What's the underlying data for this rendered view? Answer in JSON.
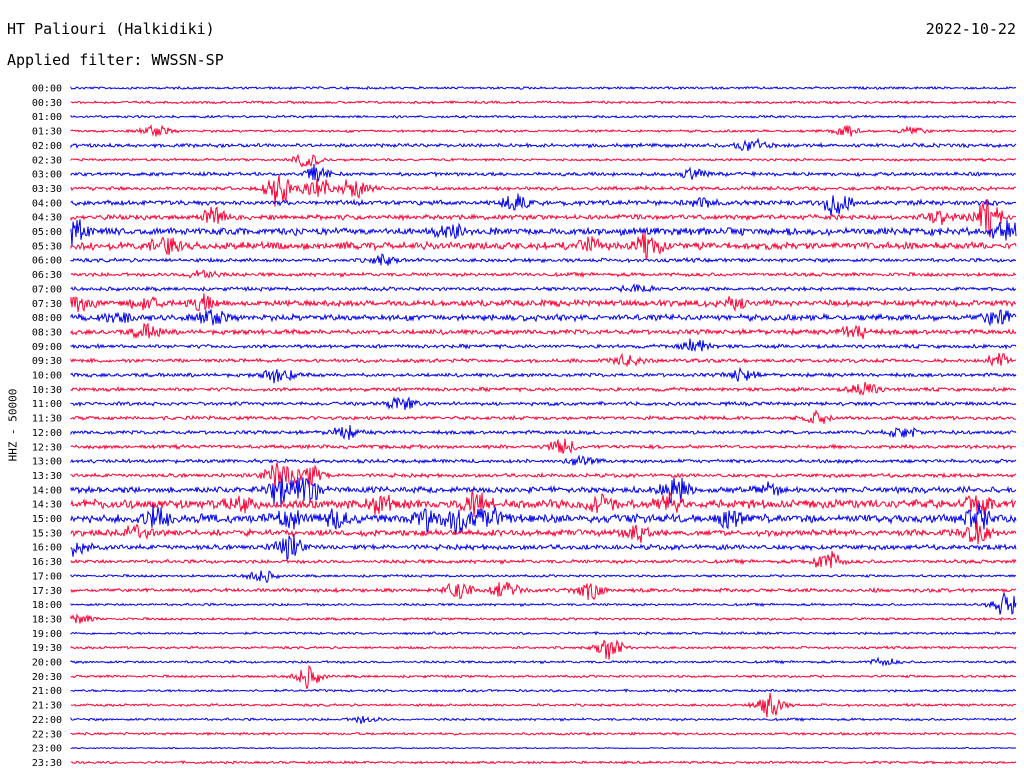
{
  "header": {
    "station": "HT Paliouri (Halkidiki)",
    "date": "2022-10-22",
    "filter": "Applied filter: WWSSN-SP"
  },
  "colors": {
    "even_trace": "#0000ee",
    "odd_trace": "#ff0033",
    "text": "#000000"
  },
  "chart_data": {
    "type": "line",
    "title": "HT Paliouri (Halkidiki)",
    "subtitle": "Applied filter: WWSSN-SP",
    "ylabel": "HHZ - 50000",
    "xlabel": "",
    "grid": false,
    "legend": "none",
    "rows": [
      "00:00",
      "00:30",
      "01:00",
      "01:30",
      "02:00",
      "02:30",
      "03:00",
      "03:30",
      "04:00",
      "04:30",
      "05:00",
      "05:30",
      "06:00",
      "06:30",
      "07:00",
      "07:30",
      "08:00",
      "08:30",
      "09:00",
      "09:30",
      "10:00",
      "10:30",
      "11:00",
      "11:30",
      "12:00",
      "12:30",
      "13:00",
      "13:30",
      "14:00",
      "14:30",
      "15:00",
      "15:30",
      "16:00",
      "16:30",
      "17:00",
      "17:30",
      "18:00",
      "18:30",
      "19:00",
      "19:30",
      "20:00",
      "20:30",
      "21:00",
      "21:30",
      "22:00",
      "22:30",
      "23:00",
      "23:30"
    ],
    "noise_level": [
      1,
      1,
      1,
      1,
      1.5,
      1,
      1.5,
      1.5,
      2,
      2,
      3,
      3,
      1.5,
      1.5,
      1.5,
      2.5,
      2.5,
      2,
      1.5,
      1.5,
      1.5,
      1.5,
      1.5,
      1.5,
      1.5,
      1.5,
      1.5,
      1.5,
      2.5,
      3.5,
      3.5,
      2.5,
      2,
      1.5,
      1,
      1.5,
      1,
      1,
      1,
      1,
      1,
      1,
      1,
      1,
      1,
      1,
      0.5,
      1
    ],
    "events": [
      {
        "row": 3,
        "x": 0.09,
        "a": 5
      },
      {
        "row": 3,
        "x": 0.82,
        "a": 5
      },
      {
        "row": 3,
        "x": 0.89,
        "a": 4
      },
      {
        "row": 4,
        "x": 0.72,
        "a": 7
      },
      {
        "row": 5,
        "x": 0.25,
        "a": 7
      },
      {
        "row": 6,
        "x": 0.26,
        "a": 10
      },
      {
        "row": 6,
        "x": 0.66,
        "a": 6
      },
      {
        "row": 7,
        "x": 0.22,
        "a": 16
      },
      {
        "row": 7,
        "x": 0.26,
        "a": 12
      },
      {
        "row": 7,
        "x": 0.3,
        "a": 10
      },
      {
        "row": 8,
        "x": 0.47,
        "a": 9
      },
      {
        "row": 8,
        "x": 0.81,
        "a": 12
      },
      {
        "row": 8,
        "x": 0.67,
        "a": 5
      },
      {
        "row": 9,
        "x": 0.15,
        "a": 8
      },
      {
        "row": 9,
        "x": 0.97,
        "a": 18
      },
      {
        "row": 9,
        "x": 0.92,
        "a": 7
      },
      {
        "row": 10,
        "x": 0.0,
        "a": 14
      },
      {
        "row": 10,
        "x": 0.4,
        "a": 7
      },
      {
        "row": 10,
        "x": 0.99,
        "a": 10
      },
      {
        "row": 11,
        "x": 0.1,
        "a": 8
      },
      {
        "row": 11,
        "x": 0.61,
        "a": 14
      },
      {
        "row": 11,
        "x": 0.55,
        "a": 7
      },
      {
        "row": 12,
        "x": 0.33,
        "a": 5
      },
      {
        "row": 13,
        "x": 0.14,
        "a": 6
      },
      {
        "row": 14,
        "x": 0.6,
        "a": 5
      },
      {
        "row": 15,
        "x": 0.01,
        "a": 7
      },
      {
        "row": 15,
        "x": 0.08,
        "a": 7
      },
      {
        "row": 15,
        "x": 0.14,
        "a": 8
      },
      {
        "row": 15,
        "x": 0.7,
        "a": 7
      },
      {
        "row": 16,
        "x": 0.05,
        "a": 6
      },
      {
        "row": 16,
        "x": 0.15,
        "a": 6
      },
      {
        "row": 16,
        "x": 0.98,
        "a": 8
      },
      {
        "row": 17,
        "x": 0.08,
        "a": 8
      },
      {
        "row": 17,
        "x": 0.83,
        "a": 7
      },
      {
        "row": 18,
        "x": 0.66,
        "a": 7
      },
      {
        "row": 19,
        "x": 0.59,
        "a": 6
      },
      {
        "row": 19,
        "x": 0.98,
        "a": 7
      },
      {
        "row": 20,
        "x": 0.22,
        "a": 8
      },
      {
        "row": 20,
        "x": 0.71,
        "a": 6
      },
      {
        "row": 21,
        "x": 0.84,
        "a": 8
      },
      {
        "row": 22,
        "x": 0.35,
        "a": 8
      },
      {
        "row": 23,
        "x": 0.79,
        "a": 6
      },
      {
        "row": 24,
        "x": 0.29,
        "a": 6
      },
      {
        "row": 24,
        "x": 0.88,
        "a": 6
      },
      {
        "row": 25,
        "x": 0.52,
        "a": 8
      },
      {
        "row": 26,
        "x": 0.54,
        "a": 5
      },
      {
        "row": 27,
        "x": 0.22,
        "a": 14
      },
      {
        "row": 27,
        "x": 0.25,
        "a": 16
      },
      {
        "row": 28,
        "x": 0.22,
        "a": 14
      },
      {
        "row": 28,
        "x": 0.25,
        "a": 16
      },
      {
        "row": 28,
        "x": 0.64,
        "a": 12
      },
      {
        "row": 28,
        "x": 0.74,
        "a": 6
      },
      {
        "row": 29,
        "x": 0.18,
        "a": 9
      },
      {
        "row": 29,
        "x": 0.33,
        "a": 9
      },
      {
        "row": 29,
        "x": 0.43,
        "a": 11
      },
      {
        "row": 29,
        "x": 0.56,
        "a": 9
      },
      {
        "row": 29,
        "x": 0.63,
        "a": 10
      },
      {
        "row": 29,
        "x": 0.96,
        "a": 10
      },
      {
        "row": 30,
        "x": 0.09,
        "a": 9
      },
      {
        "row": 30,
        "x": 0.23,
        "a": 10
      },
      {
        "row": 30,
        "x": 0.28,
        "a": 11
      },
      {
        "row": 30,
        "x": 0.38,
        "a": 10
      },
      {
        "row": 30,
        "x": 0.41,
        "a": 12
      },
      {
        "row": 30,
        "x": 0.44,
        "a": 12
      },
      {
        "row": 30,
        "x": 0.7,
        "a": 9
      },
      {
        "row": 30,
        "x": 0.96,
        "a": 10
      },
      {
        "row": 31,
        "x": 0.07,
        "a": 7
      },
      {
        "row": 31,
        "x": 0.6,
        "a": 9
      },
      {
        "row": 31,
        "x": 0.96,
        "a": 12
      },
      {
        "row": 32,
        "x": 0.0,
        "a": 12
      },
      {
        "row": 32,
        "x": 0.23,
        "a": 12
      },
      {
        "row": 33,
        "x": 0.8,
        "a": 12
      },
      {
        "row": 34,
        "x": 0.2,
        "a": 7
      },
      {
        "row": 35,
        "x": 0.41,
        "a": 10
      },
      {
        "row": 35,
        "x": 0.46,
        "a": 11
      },
      {
        "row": 35,
        "x": 0.55,
        "a": 8
      },
      {
        "row": 36,
        "x": 0.99,
        "a": 12
      },
      {
        "row": 37,
        "x": 0.01,
        "a": 5
      },
      {
        "row": 39,
        "x": 0.57,
        "a": 12
      },
      {
        "row": 40,
        "x": 0.86,
        "a": 4
      },
      {
        "row": 41,
        "x": 0.25,
        "a": 11
      },
      {
        "row": 43,
        "x": 0.74,
        "a": 12
      },
      {
        "row": 44,
        "x": 0.31,
        "a": 4
      }
    ]
  }
}
